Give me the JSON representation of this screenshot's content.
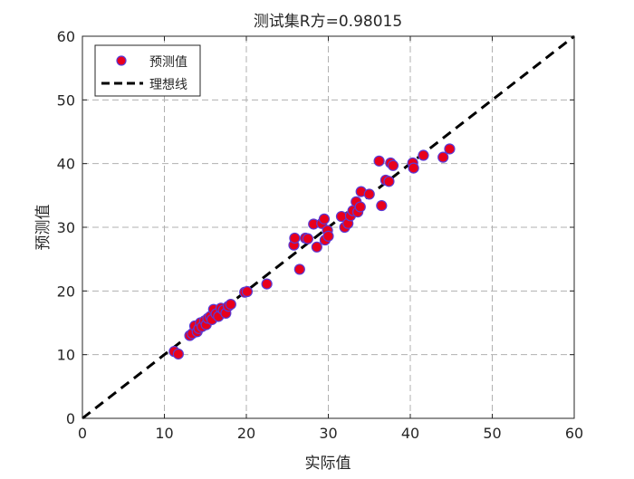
{
  "chart_data": {
    "type": "scatter",
    "title": "测试集R方=0.98015",
    "xlabel": "实际值",
    "ylabel": "预测值",
    "xlim": [
      0,
      60
    ],
    "ylim": [
      0,
      60
    ],
    "xticks": [
      "0",
      "10",
      "20",
      "30",
      "40",
      "50",
      "60"
    ],
    "yticks": [
      "0",
      "10",
      "20",
      "30",
      "40",
      "50",
      "60"
    ],
    "grid": true,
    "legend_position": "top-left",
    "series": [
      {
        "name": "预测值",
        "marker": "circle",
        "face_color": "#e8001c",
        "edge_color": "#5a3ad6",
        "points": [
          [
            11.2,
            10.5
          ],
          [
            11.7,
            10.1
          ],
          [
            13.1,
            13.0
          ],
          [
            13.4,
            13.3
          ],
          [
            13.7,
            14.5
          ],
          [
            14.0,
            13.6
          ],
          [
            14.2,
            14.1
          ],
          [
            14.4,
            15.0
          ],
          [
            14.6,
            14.4
          ],
          [
            14.9,
            15.3
          ],
          [
            15.1,
            14.7
          ],
          [
            15.3,
            15.7
          ],
          [
            15.6,
            16.0
          ],
          [
            15.8,
            15.5
          ],
          [
            16.0,
            17.1
          ],
          [
            16.3,
            16.4
          ],
          [
            16.6,
            16.0
          ],
          [
            16.9,
            17.3
          ],
          [
            17.2,
            17.0
          ],
          [
            17.5,
            16.5
          ],
          [
            17.8,
            17.6
          ],
          [
            18.1,
            17.9
          ],
          [
            19.8,
            19.8
          ],
          [
            20.1,
            19.9
          ],
          [
            22.5,
            21.1
          ],
          [
            25.8,
            27.2
          ],
          [
            25.9,
            28.3
          ],
          [
            26.5,
            23.4
          ],
          [
            27.2,
            28.3
          ],
          [
            27.5,
            28.2
          ],
          [
            28.2,
            30.5
          ],
          [
            28.6,
            26.9
          ],
          [
            29.2,
            30.6
          ],
          [
            29.5,
            31.3
          ],
          [
            29.6,
            28.0
          ],
          [
            29.9,
            29.5
          ],
          [
            30.0,
            28.6
          ],
          [
            31.6,
            31.7
          ],
          [
            32.0,
            30.0
          ],
          [
            32.4,
            30.6
          ],
          [
            32.7,
            31.8
          ],
          [
            33.0,
            32.6
          ],
          [
            33.4,
            34.0
          ],
          [
            33.6,
            32.4
          ],
          [
            33.9,
            33.2
          ],
          [
            34.0,
            35.6
          ],
          [
            35.0,
            35.2
          ],
          [
            36.2,
            40.4
          ],
          [
            36.5,
            33.4
          ],
          [
            37.0,
            37.4
          ],
          [
            37.4,
            37.2
          ],
          [
            37.6,
            40.1
          ],
          [
            37.9,
            39.7
          ],
          [
            40.3,
            40.1
          ],
          [
            40.4,
            39.3
          ],
          [
            41.6,
            41.3
          ],
          [
            44.0,
            41.0
          ],
          [
            44.8,
            42.3
          ]
        ]
      },
      {
        "name": "理想线",
        "style": "dashed",
        "color": "#000000",
        "points": [
          [
            0,
            0
          ],
          [
            60,
            60
          ]
        ]
      }
    ]
  }
}
